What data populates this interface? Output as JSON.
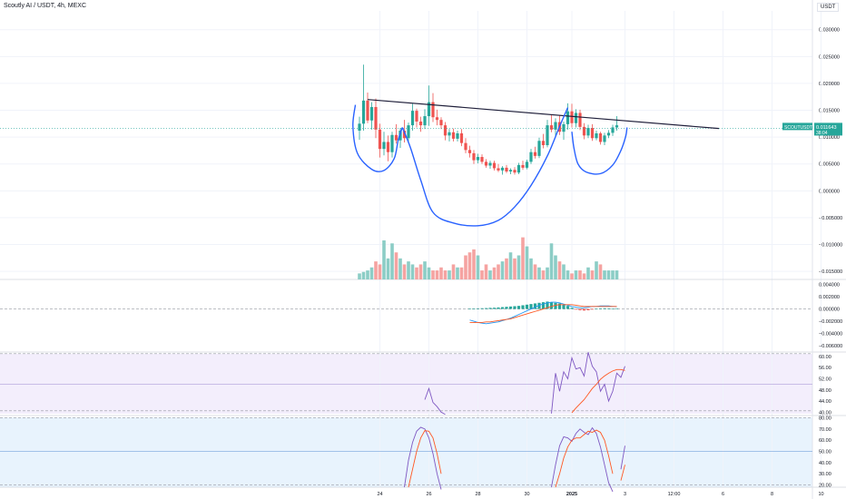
{
  "header": {
    "title": "Scoutly AI / USDT, 4h, MEXC",
    "currency_badge": "USDT"
  },
  "colors": {
    "up": "#26a69a",
    "down": "#ef5350",
    "vol_up": "#8ccdc6",
    "vol_down": "#f5a3a1",
    "pattern_curve": "#2962ff",
    "trendline": "#1f1f3a",
    "rsi_line": "#7e57c2",
    "signal_line": "#ff5722",
    "macd_line": "#2196f3",
    "rsi_bg": "#f3eefc",
    "stoch_bg": "#e8f3fd",
    "price_label_bg": "#26a69a"
  },
  "chart_data": [
    {
      "type": "candlestick",
      "name": "price",
      "price_label": {
        "symbol": "SCOUTUSDT",
        "value": "0.011643",
        "countdown": "38:04"
      },
      "y_ticks": [
        "0.030000",
        "0.025000",
        "0.020000",
        "0.015000",
        "0.010000",
        "0.005000",
        "0.000000",
        "−0.005000",
        "−0.010000",
        "−0.015000"
      ],
      "y_tick_values": [
        0.03,
        0.025,
        0.02,
        0.015,
        0.01,
        0.005,
        0.0,
        -0.005,
        -0.01,
        -0.015
      ],
      "ylim": [
        -0.0165,
        0.0335
      ],
      "x_ticks": [
        "24",
        "26",
        "28",
        "30",
        "2025",
        "3",
        "12:00",
        "6",
        "8",
        "10"
      ],
      "x_tick_index": [
        5,
        17,
        29,
        41,
        52,
        65,
        77,
        89,
        101,
        113
      ],
      "candles": [
        {
          "o": 0.0112,
          "h": 0.0138,
          "l": 0.0095,
          "c": 0.0125
        },
        {
          "o": 0.0125,
          "h": 0.0235,
          "l": 0.0112,
          "c": 0.0168
        },
        {
          "o": 0.0168,
          "h": 0.0183,
          "l": 0.0126,
          "c": 0.0131
        },
        {
          "o": 0.0131,
          "h": 0.0165,
          "l": 0.0114,
          "c": 0.0156
        },
        {
          "o": 0.0156,
          "h": 0.0172,
          "l": 0.0098,
          "c": 0.0114
        },
        {
          "o": 0.0114,
          "h": 0.0125,
          "l": 0.0062,
          "c": 0.0078
        },
        {
          "o": 0.0078,
          "h": 0.011,
          "l": 0.0066,
          "c": 0.0091
        },
        {
          "o": 0.0091,
          "h": 0.0103,
          "l": 0.0055,
          "c": 0.0072
        },
        {
          "o": 0.0072,
          "h": 0.011,
          "l": 0.0062,
          "c": 0.0104
        },
        {
          "o": 0.0104,
          "h": 0.0124,
          "l": 0.0088,
          "c": 0.0094
        },
        {
          "o": 0.0094,
          "h": 0.0117,
          "l": 0.008,
          "c": 0.0112
        },
        {
          "o": 0.0112,
          "h": 0.0132,
          "l": 0.009,
          "c": 0.0098
        },
        {
          "o": 0.0098,
          "h": 0.0127,
          "l": 0.0092,
          "c": 0.0122
        },
        {
          "o": 0.0122,
          "h": 0.0162,
          "l": 0.0112,
          "c": 0.0149
        },
        {
          "o": 0.0149,
          "h": 0.0153,
          "l": 0.0118,
          "c": 0.0129
        },
        {
          "o": 0.0129,
          "h": 0.0138,
          "l": 0.011,
          "c": 0.0122
        },
        {
          "o": 0.0122,
          "h": 0.0152,
          "l": 0.0115,
          "c": 0.0139
        },
        {
          "o": 0.0139,
          "h": 0.0196,
          "l": 0.0121,
          "c": 0.0165
        },
        {
          "o": 0.0165,
          "h": 0.0182,
          "l": 0.0128,
          "c": 0.0137
        },
        {
          "o": 0.0137,
          "h": 0.0151,
          "l": 0.0122,
          "c": 0.0132
        },
        {
          "o": 0.0132,
          "h": 0.0137,
          "l": 0.0115,
          "c": 0.0122
        },
        {
          "o": 0.0122,
          "h": 0.0128,
          "l": 0.0094,
          "c": 0.0103
        },
        {
          "o": 0.0103,
          "h": 0.0115,
          "l": 0.0092,
          "c": 0.0109
        },
        {
          "o": 0.0109,
          "h": 0.0116,
          "l": 0.0092,
          "c": 0.0097
        },
        {
          "o": 0.0097,
          "h": 0.0112,
          "l": 0.0092,
          "c": 0.0107
        },
        {
          "o": 0.0107,
          "h": 0.0115,
          "l": 0.0083,
          "c": 0.0089
        },
        {
          "o": 0.0089,
          "h": 0.0098,
          "l": 0.007,
          "c": 0.0076
        },
        {
          "o": 0.0076,
          "h": 0.0084,
          "l": 0.0062,
          "c": 0.007
        },
        {
          "o": 0.007,
          "h": 0.0076,
          "l": 0.005,
          "c": 0.0057
        },
        {
          "o": 0.0057,
          "h": 0.0069,
          "l": 0.0051,
          "c": 0.0063
        },
        {
          "o": 0.0063,
          "h": 0.0068,
          "l": 0.005,
          "c": 0.0054
        },
        {
          "o": 0.0054,
          "h": 0.0059,
          "l": 0.0043,
          "c": 0.0047
        },
        {
          "o": 0.0047,
          "h": 0.0056,
          "l": 0.0041,
          "c": 0.0052
        },
        {
          "o": 0.0052,
          "h": 0.0056,
          "l": 0.0038,
          "c": 0.0042
        },
        {
          "o": 0.0042,
          "h": 0.005,
          "l": 0.0035,
          "c": 0.0038
        },
        {
          "o": 0.0038,
          "h": 0.0046,
          "l": 0.003,
          "c": 0.0043
        },
        {
          "o": 0.0043,
          "h": 0.0048,
          "l": 0.0033,
          "c": 0.0036
        },
        {
          "o": 0.0036,
          "h": 0.0042,
          "l": 0.0031,
          "c": 0.0039
        },
        {
          "o": 0.0039,
          "h": 0.0044,
          "l": 0.003,
          "c": 0.0034
        },
        {
          "o": 0.0034,
          "h": 0.0052,
          "l": 0.0031,
          "c": 0.0048
        },
        {
          "o": 0.0048,
          "h": 0.0056,
          "l": 0.0039,
          "c": 0.0043
        },
        {
          "o": 0.0043,
          "h": 0.0058,
          "l": 0.004,
          "c": 0.0054
        },
        {
          "o": 0.0054,
          "h": 0.0078,
          "l": 0.005,
          "c": 0.0072
        },
        {
          "o": 0.0072,
          "h": 0.0082,
          "l": 0.006,
          "c": 0.0065
        },
        {
          "o": 0.0065,
          "h": 0.0099,
          "l": 0.0061,
          "c": 0.0093
        },
        {
          "o": 0.0093,
          "h": 0.0106,
          "l": 0.0079,
          "c": 0.0085
        },
        {
          "o": 0.0085,
          "h": 0.0132,
          "l": 0.0081,
          "c": 0.0122
        },
        {
          "o": 0.0122,
          "h": 0.0142,
          "l": 0.0109,
          "c": 0.0114
        },
        {
          "o": 0.0114,
          "h": 0.0135,
          "l": 0.01,
          "c": 0.0128
        },
        {
          "o": 0.0128,
          "h": 0.0141,
          "l": 0.0104,
          "c": 0.011
        },
        {
          "o": 0.011,
          "h": 0.0129,
          "l": 0.0095,
          "c": 0.0124
        },
        {
          "o": 0.0124,
          "h": 0.0163,
          "l": 0.0114,
          "c": 0.0148
        },
        {
          "o": 0.0148,
          "h": 0.0162,
          "l": 0.0118,
          "c": 0.0126
        },
        {
          "o": 0.0126,
          "h": 0.0152,
          "l": 0.0118,
          "c": 0.0145
        },
        {
          "o": 0.0145,
          "h": 0.0151,
          "l": 0.0113,
          "c": 0.0119
        },
        {
          "o": 0.0119,
          "h": 0.0126,
          "l": 0.0096,
          "c": 0.0103
        },
        {
          "o": 0.0103,
          "h": 0.0123,
          "l": 0.0098,
          "c": 0.0117
        },
        {
          "o": 0.0117,
          "h": 0.0124,
          "l": 0.0093,
          "c": 0.0098
        },
        {
          "o": 0.0098,
          "h": 0.0112,
          "l": 0.0094,
          "c": 0.0107
        },
        {
          "o": 0.0107,
          "h": 0.011,
          "l": 0.0086,
          "c": 0.0091
        },
        {
          "o": 0.0091,
          "h": 0.0108,
          "l": 0.0085,
          "c": 0.0103
        },
        {
          "o": 0.0103,
          "h": 0.0113,
          "l": 0.0098,
          "c": 0.0108
        },
        {
          "o": 0.0108,
          "h": 0.0123,
          "l": 0.0102,
          "c": 0.0118
        },
        {
          "o": 0.0118,
          "h": 0.0139,
          "l": 0.0112,
          "c": 0.0122
        }
      ],
      "trendline": {
        "from": {
          "i": 2,
          "value": 0.017
        },
        "to": {
          "i": 88,
          "value": 0.0116
        }
      },
      "pattern_curves": [
        [
          [
            -1,
            0.016
          ],
          [
            -1.6,
            0.012
          ],
          [
            -0.5,
            0.007
          ],
          [
            3,
            0.004
          ],
          [
            6,
            0.0038
          ],
          [
            8.5,
            0.006
          ],
          [
            9.5,
            0.0095
          ],
          [
            10.5,
            0.0118
          ]
        ],
        [
          [
            10.5,
            0.0118
          ],
          [
            12.5,
            0.008
          ],
          [
            15,
            0.002
          ],
          [
            18,
            -0.004
          ],
          [
            23,
            -0.006
          ],
          [
            29,
            -0.0065
          ],
          [
            34,
            -0.0055
          ],
          [
            38,
            -0.003
          ],
          [
            42,
            0.001
          ],
          [
            46,
            0.0065
          ],
          [
            49,
            0.012
          ],
          [
            51,
            0.0155
          ]
        ],
        [
          [
            52,
            0.011
          ],
          [
            52.5,
            0.008
          ],
          [
            53.5,
            0.005
          ],
          [
            55.5,
            0.0035
          ],
          [
            59,
            0.0032
          ],
          [
            62,
            0.0048
          ],
          [
            64,
            0.0075
          ],
          [
            65.2,
            0.0102
          ],
          [
            65.5,
            0.0118
          ]
        ]
      ]
    },
    {
      "type": "bar",
      "name": "volume",
      "values": [
        2,
        2.5,
        3,
        4,
        6,
        5,
        13,
        7,
        12,
        9,
        7,
        5,
        6,
        5,
        4,
        5,
        6,
        4,
        3,
        3,
        4,
        3,
        3,
        5,
        4,
        4,
        8,
        9,
        10,
        8,
        3,
        5,
        3,
        4,
        5,
        6,
        7,
        9,
        7,
        8,
        14,
        11,
        7,
        5,
        4,
        3,
        4,
        12,
        8,
        6,
        5,
        3,
        2,
        3,
        3,
        2,
        4,
        3,
        6,
        5,
        3,
        3,
        3,
        3
      ],
      "up_flags": [
        1,
        1,
        1,
        1,
        0,
        0,
        1,
        1,
        1,
        0,
        1,
        0,
        1,
        1,
        0,
        0,
        1,
        1,
        0,
        0,
        0,
        0,
        1,
        0,
        1,
        0,
        0,
        0,
        0,
        1,
        0,
        0,
        1,
        0,
        0,
        1,
        0,
        1,
        0,
        1,
        0,
        1,
        1,
        0,
        1,
        0,
        1,
        1,
        1,
        0,
        1,
        1,
        0,
        1,
        0,
        0,
        1,
        0,
        1,
        0,
        1,
        1,
        1,
        1
      ],
      "ylim": [
        0,
        16
      ]
    },
    {
      "type": "line",
      "name": "macd",
      "y_ticks": [
        "0.004000",
        "0.002000",
        "0.000000",
        "−0.002000",
        "−0.004000",
        "−0.006000"
      ],
      "y_tick_values": [
        0.004,
        0.002,
        0.0,
        -0.002,
        -0.004,
        -0.006
      ],
      "ylim": [
        -0.007,
        0.0048
      ],
      "start_index": 27,
      "hist": [
        5e-05,
        8e-05,
        0.0001,
        0.00012,
        0.00014,
        0.00018,
        0.0002,
        0.00025,
        0.0003,
        0.00035,
        0.0004,
        0.00045,
        0.0005,
        0.0006,
        0.0007,
        0.0008,
        0.0009,
        0.001,
        0.0011,
        0.0012,
        0.0011,
        0.001,
        0.0009,
        0.0007,
        0.0005,
        0.0002,
        -0.0001,
        -0.0002,
        -0.00025,
        -0.0002,
        -0.0001,
        5e-05,
        0.0001,
        0.00012,
        0.0001,
        8e-05,
        0.0001
      ],
      "macd": [
        -0.0018,
        -0.002,
        -0.0022,
        -0.0023,
        -0.0024,
        -0.0023,
        -0.0022,
        -0.0021,
        -0.0019,
        -0.0017,
        -0.0015,
        -0.0012,
        -0.0009,
        -0.0006,
        -0.0003,
        0.0,
        0.0003,
        0.0006,
        0.0008,
        0.001,
        0.0011,
        0.0011,
        0.001,
        0.0008,
        0.0006,
        0.0004,
        0.0003,
        0.0002,
        0.0002,
        0.0003,
        0.0004,
        0.0004,
        0.0005,
        0.0005,
        0.0005,
        0.0004,
        0.0004
      ],
      "signal": [
        -0.0022,
        -0.0022,
        -0.0022,
        -0.0022,
        -0.0021,
        -0.0021,
        -0.002,
        -0.0019,
        -0.0018,
        -0.0017,
        -0.0016,
        -0.0014,
        -0.0012,
        -0.001,
        -0.0008,
        -0.0006,
        -0.0004,
        -0.0002,
        0.0,
        0.0002,
        0.0004,
        0.0006,
        0.0007,
        0.0007,
        0.0007,
        0.0007,
        0.0006,
        0.0005,
        0.0004,
        0.0004,
        0.0004,
        0.0004,
        0.0004,
        0.0004,
        0.0004,
        0.0004,
        0.0004
      ]
    },
    {
      "type": "line",
      "name": "rsi",
      "y_ticks": [
        "60.00",
        "56.00",
        "52.00",
        "48.00",
        "44.00",
        "40.00"
      ],
      "y_tick_values": [
        60,
        56,
        52,
        48,
        44,
        40
      ],
      "ylim": [
        38.8,
        61.6
      ],
      "levels": [
        61,
        50,
        40.5
      ],
      "segments": [
        {
          "start_index": 16,
          "values": [
            44.5,
            48.5,
            43.5,
            42.0,
            40.0,
            39.2
          ]
        },
        {
          "start_index": 47,
          "values": [
            39.5,
            54.0,
            47.5,
            54.5,
            52.0,
            59.5,
            55.5,
            56.0,
            53.0,
            61.5,
            56.5,
            54.5,
            47.5,
            50.0,
            44.0,
            47.5,
            54.0,
            52.5,
            56.5
          ]
        }
      ],
      "signal_segments": [
        {
          "start_index": 52,
          "values": [
            39.8,
            41.5,
            43.0,
            44.5,
            46.5,
            48.5,
            50.0,
            51.8,
            53.0,
            54.0,
            54.8,
            55.3,
            55.3,
            55.0
          ]
        }
      ]
    },
    {
      "type": "line",
      "name": "stoch",
      "y_ticks": [
        "80.00",
        "70.00",
        "60.00",
        "50.00",
        "40.00",
        "30.00",
        "20.00"
      ],
      "y_tick_values": [
        80,
        70,
        60,
        50,
        40,
        30,
        20
      ],
      "ylim": [
        18,
        82
      ],
      "levels": [
        80,
        50,
        20
      ],
      "k_segments": [
        {
          "start_index": 11,
          "values": [
            18.0,
            42.0,
            58.0,
            68.0,
            71.5,
            70.0,
            62.0,
            48.0,
            30.0,
            16.0
          ]
        },
        {
          "start_index": 47,
          "values": [
            18.0,
            38.0,
            55.0,
            63.0,
            62.0,
            59.0,
            66.0,
            70.0,
            67.0,
            65.0,
            71.0,
            66.0,
            54.0,
            38.0,
            22.0,
            14.0
          ]
        },
        {
          "start_index": 64,
          "values": [
            34.0,
            55.0
          ]
        }
      ],
      "d_segments": [
        {
          "start_index": 12,
          "values": [
            18.0,
            34.0,
            50.0,
            62.0,
            68.5,
            68.0,
            62.0,
            48.0,
            30.0
          ]
        },
        {
          "start_index": 48,
          "values": [
            18.0,
            30.0,
            44.0,
            54.0,
            60.0,
            62.0,
            62.0,
            65.0,
            68.0,
            67.0,
            69.0,
            67.0,
            60.0,
            46.0,
            30.0
          ]
        },
        {
          "start_index": 64,
          "values": [
            24.0,
            38.0
          ]
        }
      ]
    }
  ]
}
